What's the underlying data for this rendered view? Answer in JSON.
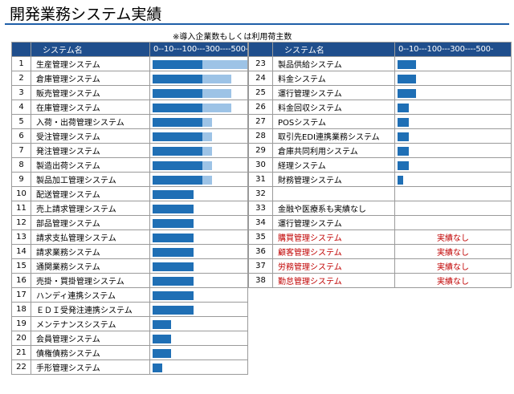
{
  "title": "開発業務システム実績",
  "note": "※導入企業数もしくは利用荷主数",
  "header": {
    "name_col": "システム名",
    "scale_col": "0--10---100---300----500-"
  },
  "colors": {
    "header_bg": "#1f4e8c",
    "bar_dark": "#1f6fb5",
    "bar_light": "#9dc3e6",
    "no_result_text": "#c00000"
  },
  "scale_note": "dark bar = first scale segment fill fraction, light bar = extended segment fill fraction (both 0-1 of the bar column)",
  "left_rows": [
    {
      "no": "1",
      "name": "生産管理システム",
      "dark": 0.48,
      "light": 0.52
    },
    {
      "no": "2",
      "name": "倉庫管理システム",
      "dark": 0.48,
      "light": 0.28
    },
    {
      "no": "3",
      "name": "販売管理システム",
      "dark": 0.48,
      "light": 0.28
    },
    {
      "no": "4",
      "name": "在庫管理システム",
      "dark": 0.48,
      "light": 0.28
    },
    {
      "no": "5",
      "name": "入荷・出荷管理システム",
      "dark": 0.48,
      "light": 0.09
    },
    {
      "no": "6",
      "name": "受注管理システム",
      "dark": 0.48,
      "light": 0.09
    },
    {
      "no": "7",
      "name": "発注管理システム",
      "dark": 0.48,
      "light": 0.09
    },
    {
      "no": "8",
      "name": "製造出荷システム",
      "dark": 0.48,
      "light": 0.09
    },
    {
      "no": "9",
      "name": "製品加工管理システム",
      "dark": 0.48,
      "light": 0.09
    },
    {
      "no": "10",
      "name": "配送管理システム",
      "dark": 0.39,
      "light": 0
    },
    {
      "no": "11",
      "name": "売上請求管理システム",
      "dark": 0.39,
      "light": 0
    },
    {
      "no": "12",
      "name": "部品管理システム",
      "dark": 0.39,
      "light": 0
    },
    {
      "no": "13",
      "name": "請求支払管理システム",
      "dark": 0.39,
      "light": 0
    },
    {
      "no": "14",
      "name": "請求業務システム",
      "dark": 0.39,
      "light": 0
    },
    {
      "no": "15",
      "name": "通関業務システム",
      "dark": 0.39,
      "light": 0
    },
    {
      "no": "16",
      "name": "売掛・買掛管理システム",
      "dark": 0.39,
      "light": 0
    },
    {
      "no": "17",
      "name": "ハンディ連携システム",
      "dark": 0.39,
      "light": 0
    },
    {
      "no": "18",
      "name": "ＥＤＩ受発注連携システム",
      "dark": 0.39,
      "light": 0
    },
    {
      "no": "19",
      "name": "メンテナンスシステム",
      "dark": 0.18,
      "light": 0
    },
    {
      "no": "20",
      "name": "会員管理システム",
      "dark": 0.18,
      "light": 0
    },
    {
      "no": "21",
      "name": "債権債務システム",
      "dark": 0.18,
      "light": 0
    },
    {
      "no": "22",
      "name": "手形管理システム",
      "dark": 0.09,
      "light": 0
    }
  ],
  "right_rows": [
    {
      "no": "23",
      "name": "製品供給システム",
      "dark": 0.18,
      "light": 0,
      "status": "",
      "red": false
    },
    {
      "no": "24",
      "name": "料金システム",
      "dark": 0.18,
      "light": 0,
      "status": "",
      "red": false
    },
    {
      "no": "25",
      "name": "運行管理システム",
      "dark": 0.18,
      "light": 0,
      "status": "",
      "red": false
    },
    {
      "no": "26",
      "name": "料金回収システム",
      "dark": 0.11,
      "light": 0,
      "status": "",
      "red": false
    },
    {
      "no": "27",
      "name": "POSシステム",
      "dark": 0.11,
      "light": 0,
      "status": "",
      "red": false
    },
    {
      "no": "28",
      "name": "取引先EDI連携業務システム",
      "dark": 0.11,
      "light": 0,
      "status": "",
      "red": false
    },
    {
      "no": "29",
      "name": "倉庫共同利用システム",
      "dark": 0.11,
      "light": 0,
      "status": "",
      "red": false
    },
    {
      "no": "30",
      "name": "経理システム",
      "dark": 0.11,
      "light": 0,
      "status": "",
      "red": false
    },
    {
      "no": "31",
      "name": "財務管理システム",
      "dark": 0.05,
      "light": 0,
      "status": "",
      "red": false
    },
    {
      "no": "32",
      "name": "",
      "dark": 0,
      "light": 0,
      "status": "",
      "red": false
    },
    {
      "no": "33",
      "name": "金融や医療系も実績なし",
      "dark": 0,
      "light": 0,
      "status": "",
      "red": false
    },
    {
      "no": "34",
      "name": "運行管理システム",
      "dark": 0,
      "light": 0,
      "status": "",
      "red": false
    },
    {
      "no": "35",
      "name": "購買管理システム",
      "dark": 0,
      "light": 0,
      "status": "実績なし",
      "red": true
    },
    {
      "no": "36",
      "name": "顧客管理システム",
      "dark": 0,
      "light": 0,
      "status": "実績なし",
      "red": true
    },
    {
      "no": "37",
      "name": "労務管理システム",
      "dark": 0,
      "light": 0,
      "status": "実績なし",
      "red": true
    },
    {
      "no": "38",
      "name": "勤怠管理システム",
      "dark": 0,
      "light": 0,
      "status": "実績なし",
      "red": true
    }
  ]
}
